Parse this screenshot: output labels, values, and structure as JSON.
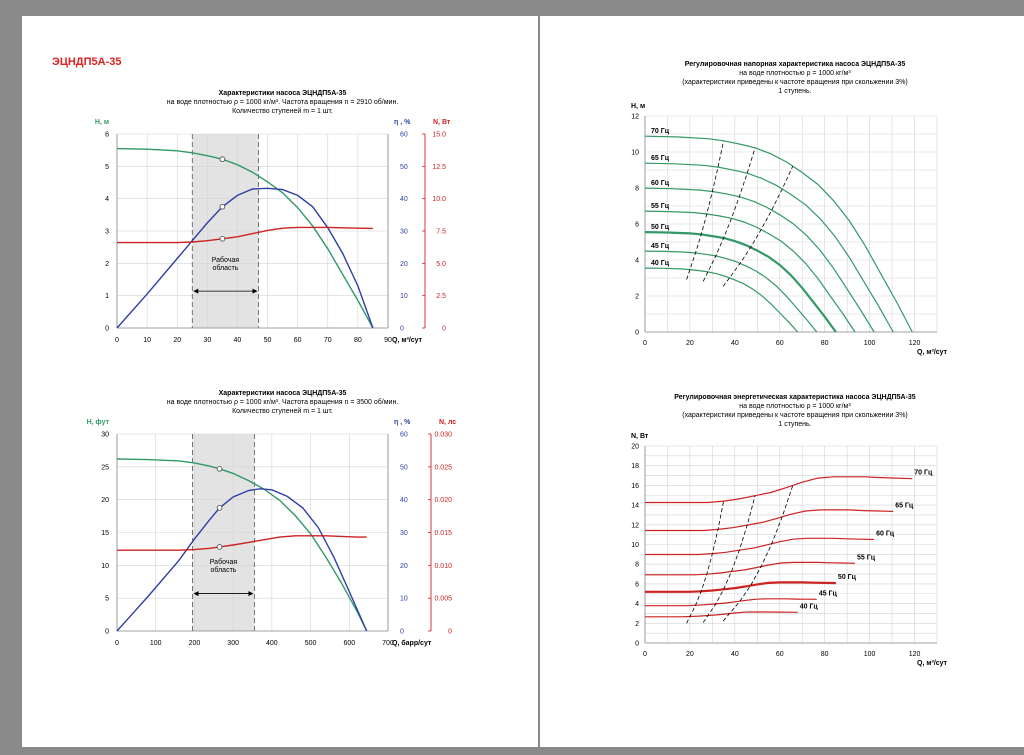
{
  "document": {
    "pump_code": "ЭЦНДП5А-35"
  },
  "chart_data": [
    {
      "id": "c1",
      "type": "line",
      "title": "Характеристики  насоса ЭЦНДП5А-35",
      "subtitle": [
        "на воде плотностью ρ = 1000 кг/м³. Частота вращения n = 2910 об/мин.",
        "Количество ступеней  m = 1 шт."
      ],
      "xlabel": "Q, м³/сут",
      "xlim": [
        0,
        90
      ],
      "xticks": [
        "0",
        "10",
        "20",
        "30",
        "40",
        "50",
        "60",
        "70",
        "80",
        "90"
      ],
      "axes": [
        {
          "label": "H, м",
          "color": "#339966",
          "lim": [
            0,
            6
          ],
          "ticks": [
            "0",
            "1",
            "2",
            "3",
            "4",
            "5",
            "6"
          ]
        },
        {
          "label": "η , %",
          "color": "#2f3fa6",
          "lim": [
            0,
            60
          ],
          "ticks": [
            "0",
            "10",
            "20",
            "30",
            "40",
            "50",
            "60"
          ]
        },
        {
          "label": "N, Вт",
          "color": "#cc2222",
          "lim": [
            0,
            15
          ],
          "ticks": [
            "0",
            "2.5",
            "5.0",
            "7.5",
            "10.0",
            "12.5",
            "15.0"
          ]
        }
      ],
      "series": [
        {
          "axis": 0,
          "color": "#339966",
          "x": [
            0,
            10,
            20,
            25,
            30,
            35,
            40,
            45,
            50,
            55,
            60,
            65,
            70,
            75,
            80,
            85
          ],
          "y": [
            5.55,
            5.53,
            5.48,
            5.42,
            5.33,
            5.22,
            5.05,
            4.82,
            4.52,
            4.18,
            3.72,
            3.15,
            2.45,
            1.65,
            0.85,
            0
          ]
        },
        {
          "axis": 1,
          "color": "#2f3fa6",
          "x": [
            0,
            10,
            20,
            30,
            35,
            40,
            45,
            50,
            55,
            60,
            65,
            70,
            75,
            80,
            85
          ],
          "y": [
            0,
            10.5,
            21.5,
            32.5,
            37.5,
            41,
            43,
            43.2,
            42.8,
            41,
            37.5,
            31,
            23,
            13,
            0
          ]
        },
        {
          "axis": 2,
          "color": "#cc2222",
          "x": [
            0,
            10,
            20,
            25,
            30,
            35,
            40,
            45,
            50,
            55,
            60,
            65,
            70,
            75,
            80,
            85
          ],
          "y": [
            6.6,
            6.6,
            6.6,
            6.65,
            6.75,
            6.9,
            7.05,
            7.3,
            7.55,
            7.72,
            7.78,
            7.78,
            7.78,
            7.75,
            7.72,
            7.7
          ]
        }
      ],
      "markers": [
        {
          "axis": 0,
          "x": 35,
          "y": 5.22
        },
        {
          "axis": 1,
          "x": 35,
          "y": 37.5
        },
        {
          "axis": 2,
          "x": 35,
          "y": 6.9
        }
      ],
      "working_range": [
        25,
        47
      ],
      "working_label": [
        "Рабочая",
        "область"
      ]
    },
    {
      "id": "c2",
      "type": "line",
      "title": "Характеристики  насоса ЭЦНДП5А-35",
      "subtitle": [
        "на воде плотностью ρ = 1000 кг/м³. Частота вращения n = 3500 об/мин.",
        "Количество ступеней  m = 1 шт."
      ],
      "xlabel": "Q, барр/сут",
      "xlim": [
        0,
        700
      ],
      "xticks": [
        "0",
        "100",
        "200",
        "300",
        "400",
        "500",
        "600",
        "700"
      ],
      "axes": [
        {
          "label": "H, фут",
          "color": "#339966",
          "lim": [
            0,
            30
          ],
          "ticks": [
            "0",
            "5",
            "10",
            "15",
            "20",
            "25",
            "30"
          ]
        },
        {
          "label": "η , %",
          "color": "#2f3fa6",
          "lim": [
            0,
            60
          ],
          "ticks": [
            "0",
            "10",
            "20",
            "30",
            "40",
            "50",
            "60"
          ]
        },
        {
          "label": "N, лс",
          "color": "#cc2222",
          "lim": [
            0,
            0.03
          ],
          "ticks": [
            "0",
            "0.005",
            "0.010",
            "0.015",
            "0.020",
            "0.025",
            "0.030"
          ]
        }
      ],
      "series": [
        {
          "axis": 0,
          "color": "#339966",
          "x": [
            0,
            80,
            160,
            200,
            240,
            265,
            300,
            340,
            380,
            420,
            460,
            500,
            540,
            580,
            620,
            645
          ],
          "y": [
            26.2,
            26.1,
            25.9,
            25.6,
            25.1,
            24.7,
            24.0,
            22.9,
            21.6,
            19.9,
            17.6,
            14.8,
            11.2,
            7.3,
            3.0,
            0
          ]
        },
        {
          "axis": 1,
          "color": "#2f3fa6",
          "x": [
            0,
            80,
            160,
            200,
            240,
            265,
            300,
            340,
            370,
            400,
            440,
            480,
            520,
            560,
            600,
            645
          ],
          "y": [
            0,
            10.5,
            21.5,
            28,
            34,
            37.5,
            40.8,
            42.8,
            43.3,
            43,
            41,
            37.5,
            31.5,
            22.5,
            12,
            0
          ]
        },
        {
          "axis": 2,
          "color": "#cc2222",
          "x": [
            0,
            80,
            160,
            200,
            240,
            265,
            300,
            340,
            380,
            420,
            460,
            500,
            540,
            580,
            620,
            645
          ],
          "y": [
            0.0123,
            0.0123,
            0.0123,
            0.0124,
            0.0126,
            0.0128,
            0.0131,
            0.0135,
            0.0139,
            0.0143,
            0.0145,
            0.0145,
            0.0145,
            0.0144,
            0.0143,
            0.0143
          ]
        }
      ],
      "markers": [
        {
          "axis": 0,
          "x": 265,
          "y": 24.7
        },
        {
          "axis": 1,
          "x": 265,
          "y": 37.5
        },
        {
          "axis": 2,
          "x": 265,
          "y": 0.0128
        }
      ],
      "working_range": [
        195,
        355
      ],
      "working_label": [
        "Рабочая",
        "область"
      ]
    },
    {
      "id": "c3",
      "type": "line",
      "title": "Регулировочная напорная характеристика  насоса ЭЦНДП5А-35",
      "subtitle": [
        "на воде плотностью ρ = 1000 кг/м³",
        "(характеристики приведены к частоте вращения при скольжении 3%)",
        "1 ступень."
      ],
      "xlabel": "Q, м³/сут",
      "ylabel": "H, м",
      "xlim": [
        0,
        130
      ],
      "ylim": [
        0,
        12
      ],
      "xticks": [
        "0",
        "20",
        "40",
        "60",
        "80",
        "100",
        "120"
      ],
      "yticks": [
        "0",
        "2",
        "4",
        "6",
        "8",
        "10",
        "12"
      ],
      "color": "#339966",
      "curves": [
        {
          "label": "70 Гц",
          "freq": 70,
          "bold": false
        },
        {
          "label": "65 Гц",
          "freq": 65,
          "bold": false
        },
        {
          "label": "60 Гц",
          "freq": 60,
          "bold": false
        },
        {
          "label": "55 Гц",
          "freq": 55,
          "bold": false
        },
        {
          "label": "50 Гц",
          "freq": 50,
          "bold": true
        },
        {
          "label": "45 Гц",
          "freq": 45,
          "bold": false
        },
        {
          "label": "40 Гц",
          "freq": 40,
          "bold": false
        }
      ],
      "base_curve": {
        "freq": 50,
        "x": [
          0,
          10,
          20,
          25,
          30,
          35,
          40,
          45,
          50,
          55,
          60,
          65,
          70,
          75,
          80,
          85
        ],
        "y": [
          5.55,
          5.53,
          5.48,
          5.42,
          5.33,
          5.22,
          5.05,
          4.82,
          4.52,
          4.18,
          3.72,
          3.15,
          2.45,
          1.65,
          0.85,
          0
        ]
      },
      "boundary_flows": [
        25,
        35,
        47
      ]
    },
    {
      "id": "c4",
      "type": "line",
      "title": "Регулировочная энергетическая характеристика  насоса ЭЦНДП5А-35",
      "subtitle": [
        "на воде плотностью ρ = 1000 кг/м³",
        "(характеристики приведены к частоте вращения при скольжении 3%)",
        "1 ступень."
      ],
      "xlabel": "Q, м³/сут",
      "ylabel": "N, Вт",
      "xlim": [
        0,
        130
      ],
      "ylim": [
        0,
        20
      ],
      "xticks": [
        "0",
        "20",
        "40",
        "60",
        "80",
        "100",
        "120"
      ],
      "yticks": [
        "0",
        "2",
        "4",
        "6",
        "8",
        "10",
        "12",
        "14",
        "16",
        "18",
        "20"
      ],
      "color": "#cc2222",
      "curves": [
        {
          "label": "70 Гц",
          "freq": 70,
          "bold": false
        },
        {
          "label": "65 Гц",
          "freq": 65,
          "bold": false
        },
        {
          "label": "60 Гц",
          "freq": 60,
          "bold": false
        },
        {
          "label": "55 Гц",
          "freq": 55,
          "bold": false
        },
        {
          "label": "50 Гц",
          "freq": 50,
          "bold": true
        },
        {
          "label": "45 Гц",
          "freq": 45,
          "bold": false
        },
        {
          "label": "40 Гц",
          "freq": 40,
          "bold": false
        }
      ],
      "base_curve": {
        "freq": 50,
        "x": [
          0,
          10,
          20,
          25,
          30,
          35,
          40,
          45,
          50,
          55,
          60,
          65,
          70,
          75,
          80,
          85
        ],
        "y": [
          5.2,
          5.2,
          5.2,
          5.25,
          5.33,
          5.45,
          5.57,
          5.75,
          5.95,
          6.1,
          6.15,
          6.15,
          6.15,
          6.12,
          6.1,
          6.08
        ]
      },
      "boundary_flows": [
        25,
        35,
        47
      ]
    }
  ]
}
